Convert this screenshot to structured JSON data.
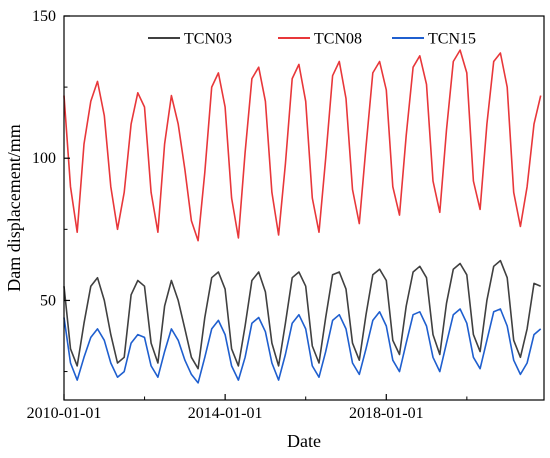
{
  "chart_data": {
    "type": "line",
    "title": "",
    "xlabel": "Date",
    "ylabel": "Dam displacement/mm",
    "xlim": [
      "2010-01-01",
      "2021-12-01"
    ],
    "ylim": [
      15,
      150
    ],
    "x_ticks": [
      "2010-01-01",
      "2014-01-01",
      "2018-01-01"
    ],
    "y_ticks": [
      50,
      100,
      150
    ],
    "grid": false,
    "legend_position": "top",
    "x": [
      "2010-01-01",
      "2010-03-01",
      "2010-05-01",
      "2010-07-01",
      "2010-09-01",
      "2010-11-01",
      "2011-01-01",
      "2011-03-01",
      "2011-05-01",
      "2011-07-01",
      "2011-09-01",
      "2011-11-01",
      "2012-01-01",
      "2012-03-01",
      "2012-05-01",
      "2012-07-01",
      "2012-09-01",
      "2012-11-01",
      "2013-01-01",
      "2013-03-01",
      "2013-05-01",
      "2013-07-01",
      "2013-09-01",
      "2013-11-01",
      "2014-01-01",
      "2014-03-01",
      "2014-05-01",
      "2014-07-01",
      "2014-09-01",
      "2014-11-01",
      "2015-01-01",
      "2015-03-01",
      "2015-05-01",
      "2015-07-01",
      "2015-09-01",
      "2015-11-01",
      "2016-01-01",
      "2016-03-01",
      "2016-05-01",
      "2016-07-01",
      "2016-09-01",
      "2016-11-01",
      "2017-01-01",
      "2017-03-01",
      "2017-05-01",
      "2017-07-01",
      "2017-09-01",
      "2017-11-01",
      "2018-01-01",
      "2018-03-01",
      "2018-05-01",
      "2018-07-01",
      "2018-09-01",
      "2018-11-01",
      "2019-01-01",
      "2019-03-01",
      "2019-05-01",
      "2019-07-01",
      "2019-09-01",
      "2019-11-01",
      "2020-01-01",
      "2020-03-01",
      "2020-05-01",
      "2020-07-01",
      "2020-09-01",
      "2020-11-01",
      "2021-01-01",
      "2021-03-01",
      "2021-05-01",
      "2021-07-01",
      "2021-09-01",
      "2021-11-01"
    ],
    "series": [
      {
        "name": "TCN03",
        "color": "#404040",
        "values": [
          55,
          33,
          27,
          42,
          55,
          58,
          50,
          38,
          28,
          30,
          52,
          57,
          55,
          35,
          28,
          48,
          57,
          50,
          40,
          30,
          26,
          44,
          58,
          60,
          54,
          33,
          27,
          41,
          57,
          60,
          53,
          35,
          27,
          42,
          58,
          60,
          55,
          34,
          28,
          44,
          59,
          60,
          54,
          35,
          29,
          45,
          59,
          61,
          57,
          36,
          31,
          48,
          60,
          62,
          58,
          38,
          31,
          49,
          61,
          63,
          59,
          38,
          32,
          50,
          62,
          64,
          58,
          36,
          30,
          40,
          56,
          55
        ]
      },
      {
        "name": "TCN08",
        "color": "#e8373a",
        "values": [
          122,
          90,
          74,
          105,
          120,
          127,
          115,
          90,
          75,
          88,
          112,
          123,
          118,
          88,
          74,
          105,
          122,
          112,
          96,
          78,
          71,
          95,
          125,
          130,
          118,
          86,
          72,
          102,
          128,
          132,
          120,
          88,
          73,
          98,
          128,
          133,
          120,
          86,
          74,
          100,
          129,
          134,
          121,
          89,
          77,
          104,
          130,
          134,
          124,
          90,
          80,
          108,
          132,
          136,
          126,
          92,
          81,
          110,
          134,
          138,
          130,
          92,
          82,
          112,
          134,
          137,
          125,
          88,
          76,
          90,
          112,
          122
        ]
      },
      {
        "name": "TCN15",
        "color": "#1f5fcf",
        "values": [
          44,
          28,
          22,
          30,
          37,
          40,
          36,
          28,
          23,
          25,
          35,
          38,
          37,
          27,
          23,
          32,
          40,
          36,
          29,
          24,
          21,
          30,
          40,
          43,
          38,
          27,
          22,
          30,
          42,
          44,
          39,
          28,
          22,
          31,
          42,
          45,
          40,
          27,
          23,
          32,
          43,
          45,
          40,
          28,
          24,
          33,
          43,
          46,
          41,
          29,
          25,
          35,
          45,
          46,
          41,
          30,
          25,
          35,
          45,
          47,
          42,
          30,
          26,
          36,
          46,
          47,
          41,
          29,
          24,
          28,
          38,
          40
        ]
      }
    ]
  }
}
